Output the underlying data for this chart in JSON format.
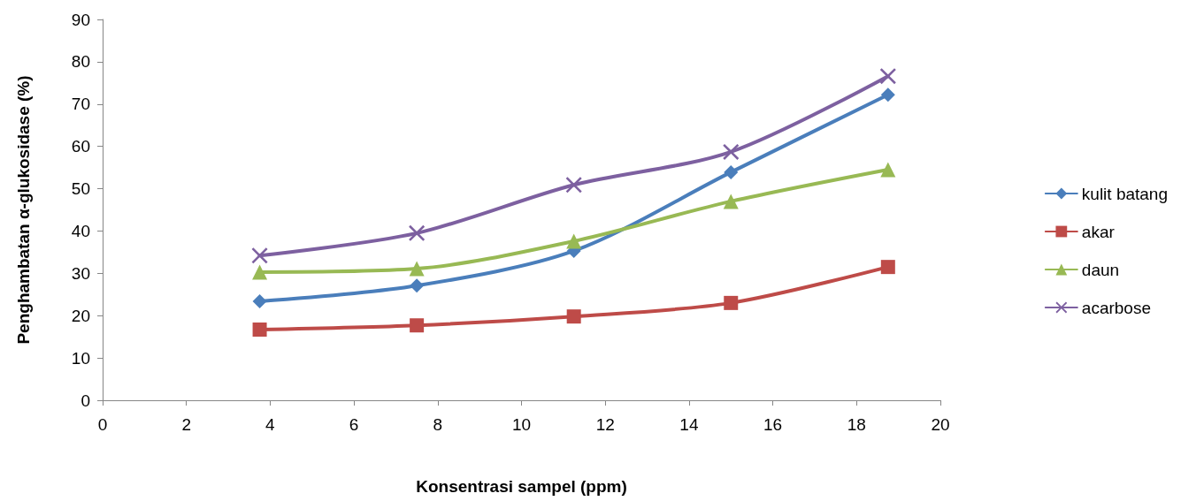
{
  "chart_data": {
    "type": "line",
    "xlabel": "Konsentrasi sampel (ppm)",
    "ylabel": "Penghambatan α-glukosidase (%)",
    "x": [
      3.75,
      7.5,
      11.25,
      15,
      18.75
    ],
    "series": [
      {
        "name": "kulit batang",
        "color": "#4a7ebb",
        "marker": "diamond",
        "values": [
          23.4,
          27.1,
          35.3,
          53.9,
          72.2
        ]
      },
      {
        "name": "akar",
        "color": "#be4b48",
        "marker": "square",
        "values": [
          16.7,
          17.7,
          19.8,
          23.0,
          31.5
        ]
      },
      {
        "name": "daun",
        "color": "#98b954",
        "marker": "triangle",
        "values": [
          30.3,
          31.1,
          37.6,
          47.0,
          54.5
        ]
      },
      {
        "name": "acarbose",
        "color": "#7d60a0",
        "marker": "cross",
        "values": [
          34.2,
          39.5,
          50.9,
          58.7,
          76.6
        ]
      }
    ],
    "xlim": [
      0,
      20
    ],
    "xticks": [
      0,
      2,
      4,
      6,
      8,
      10,
      12,
      14,
      16,
      18,
      20
    ],
    "ylim": [
      0,
      90
    ],
    "yticks": [
      0,
      10,
      20,
      30,
      40,
      50,
      60,
      70,
      80,
      90
    ],
    "grid": false,
    "legend": "right",
    "line_style": "solid"
  }
}
